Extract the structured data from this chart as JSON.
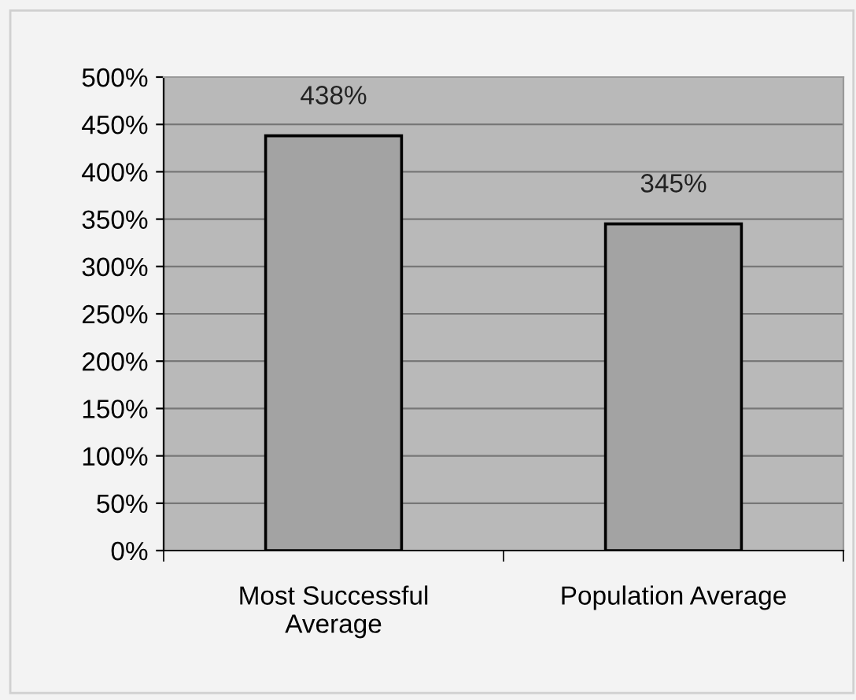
{
  "chart_data": {
    "type": "bar",
    "categories": [
      "Most Successful Average",
      "Population Average"
    ],
    "values": [
      438,
      345
    ],
    "color": "#a3a3a3",
    "value_labels": [
      "438%",
      "345%"
    ],
    "ylim": [
      0,
      500
    ],
    "yticks": [
      {
        "value": 0,
        "label": "0%"
      },
      {
        "value": 50,
        "label": "50%"
      },
      {
        "value": 100,
        "label": "100%"
      },
      {
        "value": 150,
        "label": "150%"
      },
      {
        "value": 200,
        "label": "200%"
      },
      {
        "value": 250,
        "label": "250%"
      },
      {
        "value": 300,
        "label": "300%"
      },
      {
        "value": 350,
        "label": "350%"
      },
      {
        "value": 400,
        "label": "400%"
      },
      {
        "value": 450,
        "label": "450%"
      },
      {
        "value": 500,
        "label": "500%"
      }
    ],
    "grid": "y",
    "legend": false
  }
}
